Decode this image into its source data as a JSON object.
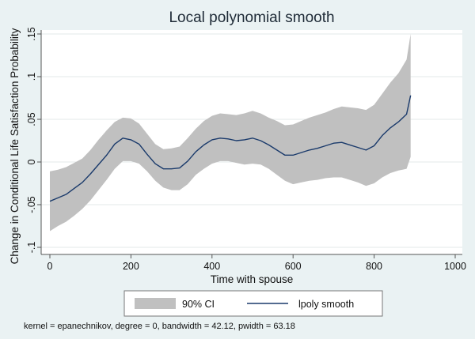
{
  "chart_data": {
    "type": "line",
    "title": "Local polynomial smooth",
    "xlabel": "Time with spouse",
    "ylabel": "Change in Conditional Life Satisfaction Probability",
    "xlim": [
      0,
      1000
    ],
    "ylim": [
      -0.1,
      0.15
    ],
    "x_ticks": [
      0,
      200,
      400,
      600,
      800,
      1000
    ],
    "x_tick_labels": [
      "0",
      "200",
      "400",
      "600",
      "800",
      "1000"
    ],
    "y_ticks": [
      -0.1,
      -0.05,
      0,
      0.05,
      0.1,
      0.15
    ],
    "y_tick_labels": [
      "-.1",
      "-.05",
      "0",
      ".05",
      ".1",
      ".15"
    ],
    "grid": true,
    "legend_position": "bottom",
    "note": "kernel = epanechnikov, degree = 0, bandwidth = 42.12, pwidth = 63.18",
    "x": [
      0,
      20,
      40,
      60,
      80,
      100,
      120,
      140,
      160,
      180,
      200,
      220,
      240,
      260,
      280,
      300,
      320,
      340,
      360,
      380,
      400,
      420,
      440,
      460,
      480,
      500,
      520,
      540,
      560,
      580,
      600,
      620,
      640,
      660,
      680,
      700,
      720,
      740,
      760,
      780,
      800,
      820,
      840,
      860,
      880,
      890
    ],
    "series": [
      {
        "name": "lpoly smooth",
        "type": "line",
        "color": "#1a3a6b",
        "values": [
          -0.046,
          -0.042,
          -0.038,
          -0.031,
          -0.024,
          -0.014,
          -0.003,
          0.008,
          0.021,
          0.028,
          0.026,
          0.021,
          0.009,
          -0.002,
          -0.008,
          -0.008,
          -0.007,
          0.001,
          0.012,
          0.02,
          0.026,
          0.028,
          0.027,
          0.025,
          0.026,
          0.028,
          0.025,
          0.02,
          0.014,
          0.008,
          0.008,
          0.011,
          0.014,
          0.016,
          0.019,
          0.022,
          0.023,
          0.02,
          0.017,
          0.014,
          0.019,
          0.031,
          0.04,
          0.047,
          0.056,
          0.078
        ]
      },
      {
        "name": "90% CI",
        "type": "area",
        "color": "#c0c0c0",
        "lower": [
          -0.081,
          -0.075,
          -0.07,
          -0.063,
          -0.055,
          -0.045,
          -0.033,
          -0.021,
          -0.008,
          0.001,
          0.001,
          -0.002,
          -0.011,
          -0.022,
          -0.03,
          -0.033,
          -0.033,
          -0.026,
          -0.015,
          -0.008,
          -0.002,
          0.001,
          0.001,
          -0.001,
          -0.003,
          -0.002,
          -0.003,
          -0.008,
          -0.015,
          -0.022,
          -0.026,
          -0.024,
          -0.022,
          -0.021,
          -0.019,
          -0.018,
          -0.018,
          -0.021,
          -0.024,
          -0.028,
          -0.025,
          -0.018,
          -0.013,
          -0.01,
          -0.008,
          0.006
        ],
        "upper": [
          -0.011,
          -0.009,
          -0.006,
          -0.001,
          0.004,
          0.014,
          0.026,
          0.037,
          0.047,
          0.052,
          0.051,
          0.045,
          0.033,
          0.021,
          0.015,
          0.016,
          0.018,
          0.028,
          0.039,
          0.048,
          0.054,
          0.057,
          0.056,
          0.055,
          0.057,
          0.06,
          0.057,
          0.052,
          0.048,
          0.043,
          0.044,
          0.048,
          0.052,
          0.055,
          0.058,
          0.062,
          0.065,
          0.064,
          0.063,
          0.061,
          0.067,
          0.08,
          0.093,
          0.104,
          0.12,
          0.15
        ]
      }
    ]
  }
}
